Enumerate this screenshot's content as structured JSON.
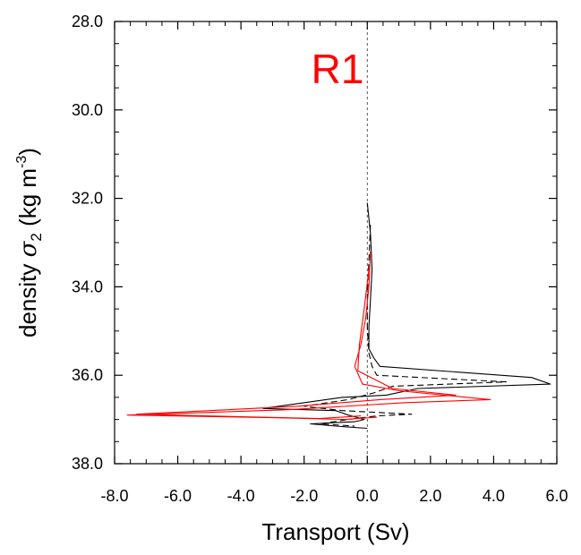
{
  "chart_data": {
    "type": "line",
    "title": "R1",
    "title_color": "#ff0000",
    "xlabel": "Transport (Sv)",
    "ylabel": {
      "prefix": "density ",
      "symbol": "σ",
      "subscript": "2",
      "units_open": " (kg m",
      "units_sup": "-3",
      "units_close": ")"
    },
    "xlim": [
      -8.0,
      6.0
    ],
    "ylim": [
      28.0,
      38.0
    ],
    "y_inverted": true,
    "x_ticks": [
      -8.0,
      -6.0,
      -4.0,
      -2.0,
      0.0,
      2.0,
      4.0,
      6.0
    ],
    "x_tick_labels": [
      "-8.0",
      "-6.0",
      "-4.0",
      "-2.0",
      "0.0",
      "2.0",
      "4.0",
      "6.0"
    ],
    "y_ticks": [
      28.0,
      30.0,
      32.0,
      34.0,
      36.0,
      38.0
    ],
    "y_tick_labels": [
      "28.0",
      "30.0",
      "32.0",
      "34.0",
      "36.0",
      "38.0"
    ],
    "grid": false,
    "zero_reference_line": true,
    "series": [
      {
        "color": "#000000",
        "dash": "solid",
        "points": [
          [
            0.0,
            32.1
          ],
          [
            0.1,
            32.8
          ],
          [
            0.15,
            33.6
          ],
          [
            0.1,
            34.3
          ],
          [
            0.05,
            34.9
          ],
          [
            0.05,
            35.4
          ],
          [
            0.2,
            35.6
          ],
          [
            0.4,
            35.8
          ],
          [
            5.2,
            36.05
          ],
          [
            5.8,
            36.2
          ],
          [
            1.6,
            36.3
          ],
          [
            0.6,
            36.45
          ],
          [
            -0.8,
            36.5
          ],
          [
            -3.3,
            36.75
          ],
          [
            -1.0,
            36.8
          ],
          [
            -0.6,
            36.9
          ],
          [
            -0.1,
            37.0
          ],
          [
            -0.4,
            37.05
          ],
          [
            -1.8,
            37.1
          ],
          [
            -1.0,
            37.15
          ],
          [
            0.0,
            37.2
          ]
        ]
      },
      {
        "color": "#000000",
        "dash": "dashed",
        "points": [
          [
            0.1,
            32.6
          ],
          [
            0.05,
            33.4
          ],
          [
            0.0,
            34.2
          ],
          [
            0.0,
            34.9
          ],
          [
            0.05,
            35.5
          ],
          [
            0.15,
            35.8
          ],
          [
            0.3,
            36.0
          ],
          [
            4.4,
            36.15
          ],
          [
            0.8,
            36.25
          ],
          [
            0.2,
            36.4
          ],
          [
            -0.6,
            36.55
          ],
          [
            -2.0,
            36.7
          ],
          [
            -0.8,
            36.8
          ],
          [
            1.4,
            36.88
          ],
          [
            0.3,
            36.92
          ],
          [
            -0.6,
            37.0
          ],
          [
            -1.5,
            37.1
          ],
          [
            -0.4,
            37.15
          ]
        ]
      },
      {
        "color": "#ff0000",
        "dash": "solid",
        "points": [
          [
            0.1,
            33.2
          ],
          [
            0.05,
            34.0
          ],
          [
            -0.05,
            34.7
          ],
          [
            -0.2,
            35.3
          ],
          [
            -0.4,
            35.8
          ],
          [
            -0.15,
            36.2
          ],
          [
            1.0,
            36.35
          ],
          [
            3.9,
            36.55
          ],
          [
            1.2,
            36.62
          ],
          [
            -2.5,
            36.78
          ],
          [
            -7.6,
            36.9
          ],
          [
            -3.0,
            36.96
          ],
          [
            -0.7,
            37.0
          ],
          [
            0.3,
            36.95
          ]
        ]
      },
      {
        "color": "#ff0000",
        "dash": "solid",
        "points": [
          [
            0.05,
            33.6
          ],
          [
            -0.1,
            34.5
          ],
          [
            -0.25,
            35.3
          ],
          [
            -0.3,
            35.9
          ],
          [
            0.8,
            36.3
          ],
          [
            2.8,
            36.45
          ],
          [
            0.4,
            36.55
          ],
          [
            -2.2,
            36.7
          ],
          [
            -7.3,
            36.88
          ],
          [
            -1.5,
            36.98
          ],
          [
            -0.2,
            36.92
          ]
        ]
      }
    ]
  }
}
